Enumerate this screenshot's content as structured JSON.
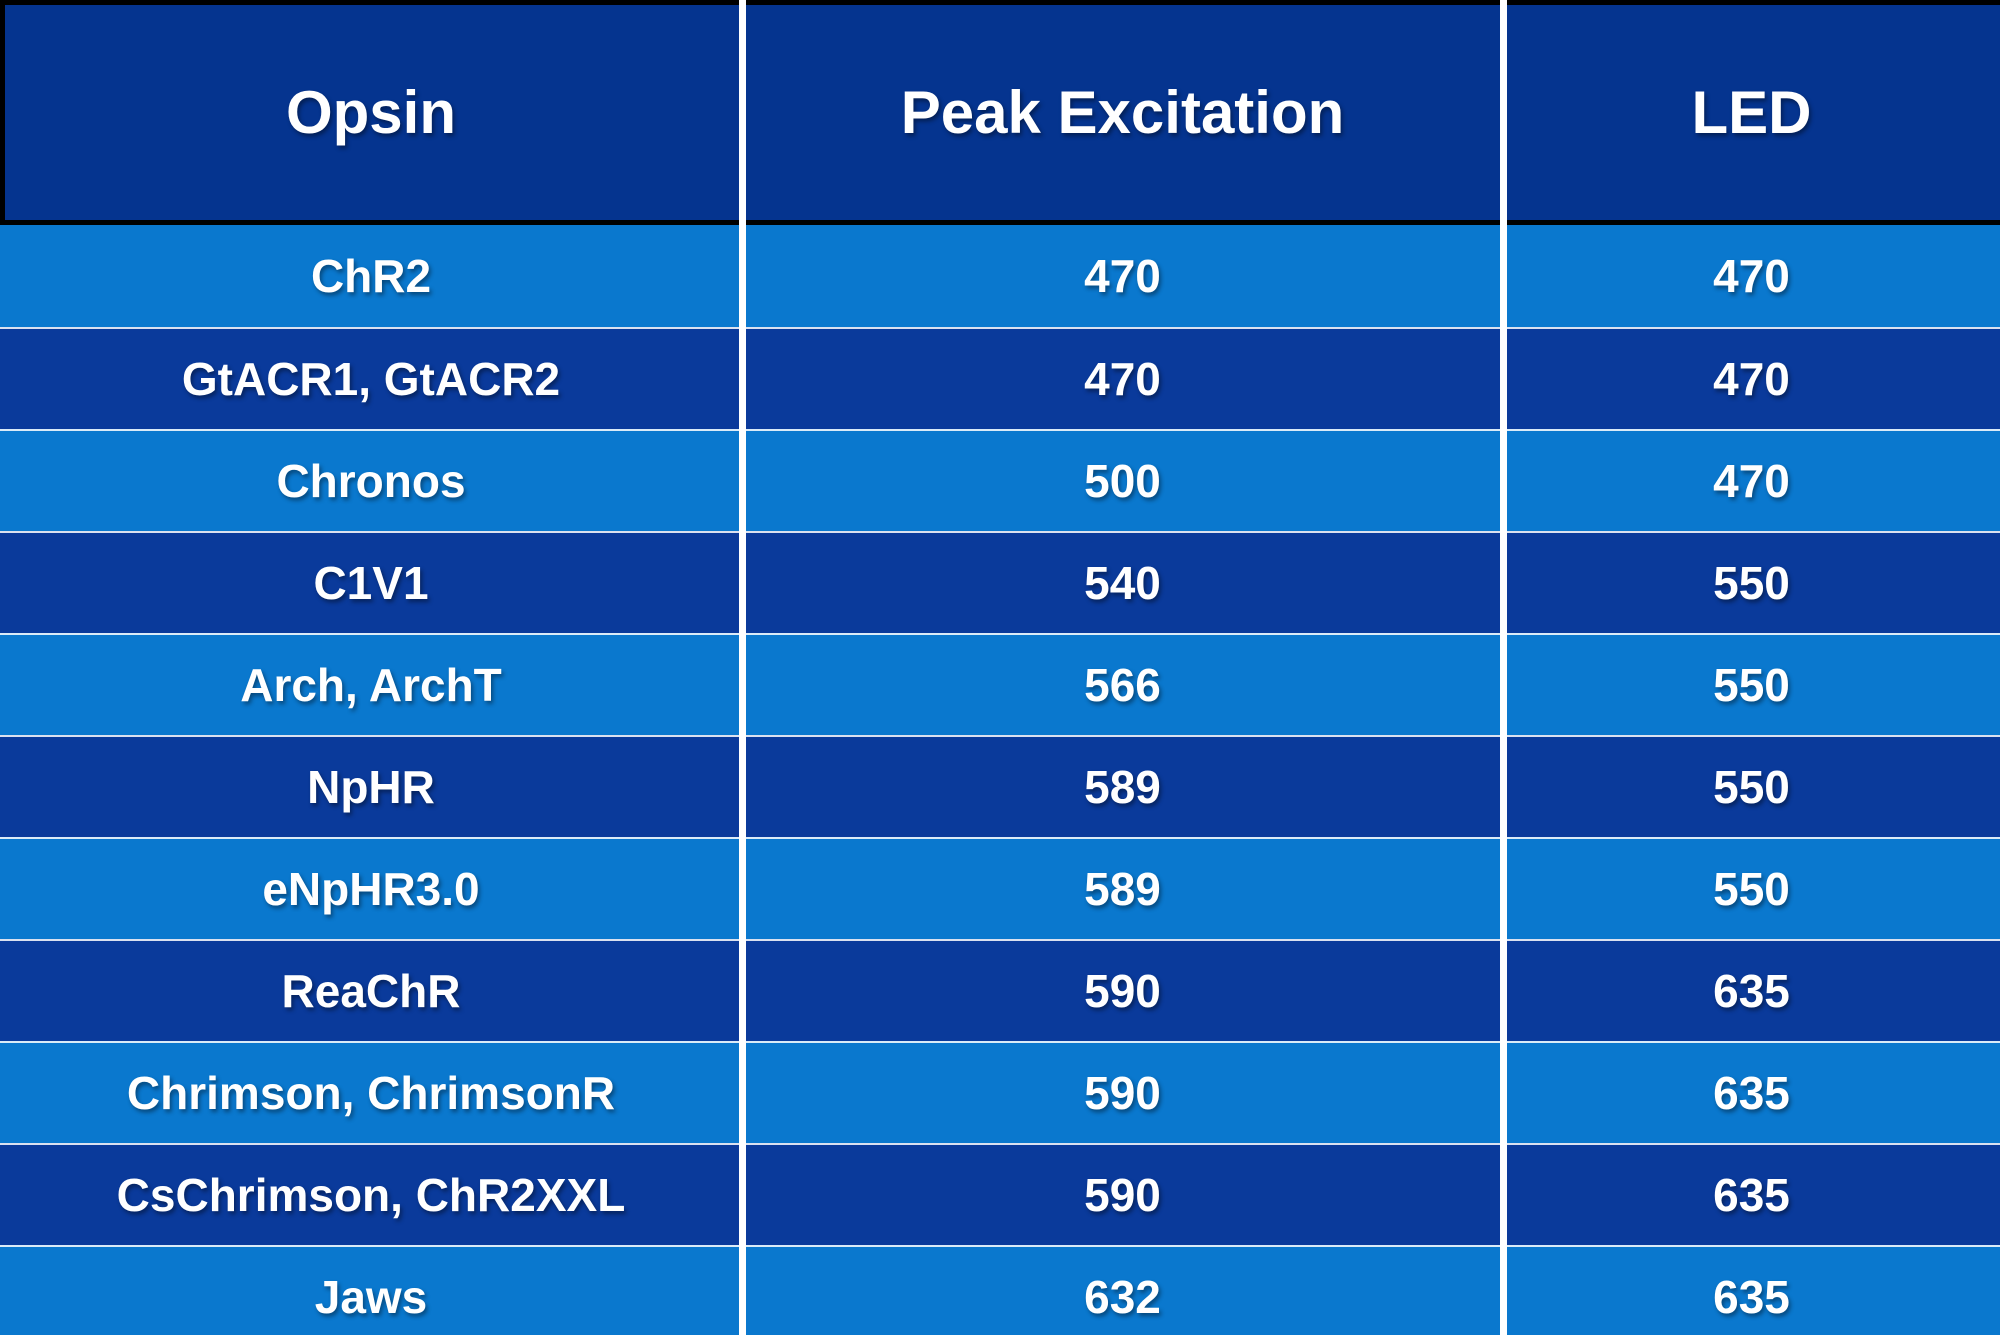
{
  "chart_data": {
    "type": "table",
    "columns": [
      "Opsin",
      "Peak Excitation",
      "LED"
    ],
    "rows": [
      {
        "opsin": "ChR2",
        "peak_excitation": "470",
        "led": "470"
      },
      {
        "opsin": "GtACR1, GtACR2",
        "peak_excitation": "470",
        "led": "470"
      },
      {
        "opsin": "Chronos",
        "peak_excitation": "500",
        "led": "470"
      },
      {
        "opsin": "C1V1",
        "peak_excitation": "540",
        "led": "550"
      },
      {
        "opsin": "Arch, ArchT",
        "peak_excitation": "566",
        "led": "550"
      },
      {
        "opsin": "NpHR",
        "peak_excitation": "589",
        "led": "550"
      },
      {
        "opsin": "eNpHR3.0",
        "peak_excitation": "589",
        "led": "550"
      },
      {
        "opsin": "ReaChR",
        "peak_excitation": "590",
        "led": "635"
      },
      {
        "opsin": "Chrimson, ChrimsonR",
        "peak_excitation": "590",
        "led": "635"
      },
      {
        "opsin": "CsChrimson, ChR2XXL",
        "peak_excitation": "590",
        "led": "635"
      },
      {
        "opsin": "Jaws",
        "peak_excitation": "632",
        "led": "635"
      }
    ],
    "layout_hints": {
      "banded_rows": true,
      "first_data_row_shade": "light",
      "header_black_frame": true,
      "white_column_dividers": true
    }
  },
  "colors": {
    "header_bg": "#05348F",
    "row_dark": "#0A3A9B",
    "row_light": "#0A78CE",
    "divider": "#FFFFFF",
    "border": "#000000",
    "text": "#FFFFFF"
  }
}
